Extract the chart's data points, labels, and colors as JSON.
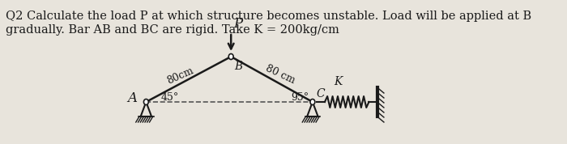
{
  "bg_color": "#e8e4dc",
  "text_q2": "Q2 Calculate the load P at which structure becomes unstable. Load will be applied at B",
  "text_line2": "gradually. Bar AB and BC are rigid. Take K = 200kg/cm",
  "title_fontsize": 10.5,
  "fig_width": 7.0,
  "fig_height": 1.78,
  "angle_A": "45°",
  "angle_C": "95°",
  "label_AB": "80cm",
  "label_BC": "80 cm",
  "label_P": "P",
  "label_A": "A",
  "label_B": "B",
  "label_C": "C",
  "label_K": "K",
  "line_color": "#1a1a1a",
  "dashed_color": "#555555"
}
